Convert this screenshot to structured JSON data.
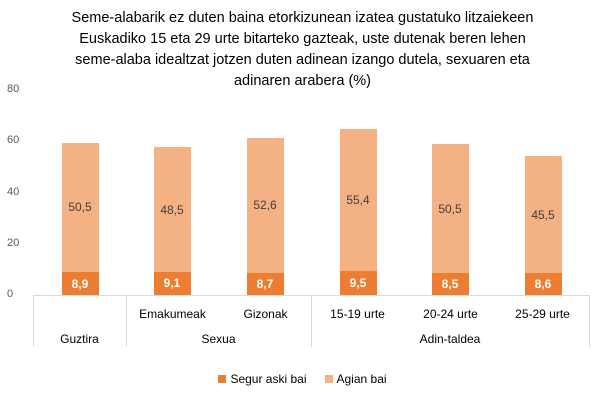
{
  "chart_data": {
    "type": "bar",
    "stacked": true,
    "title": "Seme-alabarik ez duten baina etorkizunean izatea gustatuko litzaiekeen Euskadiko 15 eta 29 urte bitarteko gazteak, uste dutenak beren lehen seme-alaba idealtzat jotzen duten adinean izango dutela, sexuaren eta adinaren arabera (%)",
    "title_lines": [
      "Seme-alabarik ez duten baina etorkizunean izatea gustatuko litzaiekeen",
      "Euskadiko 15 eta 29 urte bitarteko gazteak, uste dutenak beren lehen",
      "seme-alaba idealtzat jotzen duten adinean izango dutela, sexuaren eta",
      "adinaren arabera (%)"
    ],
    "categories": [
      "Guztira",
      "Emakumeak",
      "Gizonak",
      "15-19 urte",
      "20-24 urte",
      "25-29 urte"
    ],
    "category_groups": [
      {
        "label": "Guztira",
        "members": [
          "Guztira"
        ],
        "show_member_label": false
      },
      {
        "label": "Sexua",
        "members": [
          "Emakumeak",
          "Gizonak"
        ]
      },
      {
        "label": "Adin-taldea",
        "members": [
          "15-19 urte",
          "20-24 urte",
          "25-29 urte"
        ]
      }
    ],
    "series": [
      {
        "name": "Segur aski bai",
        "color": "#ed7d31",
        "values": [
          8.9,
          9.1,
          8.7,
          9.5,
          8.5,
          8.6
        ],
        "labels": [
          "8,9",
          "9,1",
          "8,7",
          "9,5",
          "8,5",
          "8,6"
        ]
      },
      {
        "name": "Agian bai",
        "color": "#f4b183",
        "values": [
          50.5,
          48.5,
          52.6,
          55.4,
          50.5,
          45.5
        ],
        "labels": [
          "50,5",
          "48,5",
          "52,6",
          "55,4",
          "50,5",
          "45,5"
        ]
      }
    ],
    "xlabel": "",
    "ylabel": "",
    "ylim": [
      0,
      80
    ],
    "yticks": [
      0,
      20,
      40,
      60,
      80
    ],
    "grid": false,
    "legend_position": "bottom"
  },
  "yticks": [
    "80",
    "60",
    "40",
    "20",
    "0"
  ],
  "legend": {
    "segur": "Segur aski bai",
    "agian": "Agian bai"
  },
  "groups": {
    "guztira": "Guztira",
    "sexua": "Sexua",
    "adin": "Adin-taldea"
  },
  "cats": {
    "emakumeak": "Emakumeak",
    "gizonak": "Gizonak",
    "a1519": "15-19 urte",
    "a2024": "20-24 urte",
    "a2529": "25-29 urte"
  }
}
